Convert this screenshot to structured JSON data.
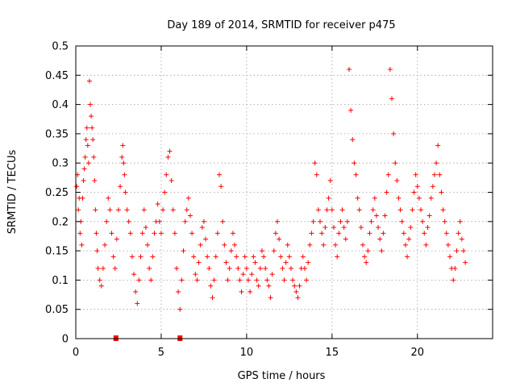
{
  "chart_data": {
    "type": "scatter",
    "title": "Day 189 of 2014, SRMTID for receiver p475",
    "xlabel": "GPS time / hours",
    "ylabel": "SRMTID / TECUs",
    "xlim": [
      0,
      24.4
    ],
    "ylim": [
      0,
      0.5
    ],
    "xticks": [
      0,
      5,
      10,
      15,
      20
    ],
    "xtick_labels": [
      "0",
      "5",
      "10",
      "15",
      "20"
    ],
    "yticks": [
      0,
      0.05,
      0.1,
      0.15,
      0.2,
      0.25,
      0.3,
      0.35,
      0.4,
      0.45,
      0.5
    ],
    "ytick_labels": [
      "0",
      "0.05",
      "0.1",
      "0.15",
      "0.2",
      "0.25",
      "0.3",
      "0.35",
      "0.4",
      "0.45",
      "0.5"
    ],
    "grid": true,
    "marker_color": "#ff0000",
    "zero_markers_x": [
      2.35,
      6.1
    ],
    "series": [
      {
        "name": "SRMTID",
        "x": [
          0.05,
          0.1,
          0.15,
          0.2,
          0.25,
          0.3,
          0.35,
          0.4,
          0.45,
          0.5,
          0.55,
          0.6,
          0.65,
          0.7,
          0.75,
          0.8,
          0.85,
          0.9,
          0.95,
          1.0,
          1.05,
          1.1,
          1.15,
          1.2,
          1.25,
          1.3,
          1.4,
          1.5,
          1.6,
          1.7,
          1.8,
          1.9,
          2.0,
          2.1,
          2.2,
          2.3,
          2.4,
          2.5,
          2.6,
          2.7,
          2.75,
          2.8,
          2.85,
          2.9,
          3.0,
          3.1,
          3.2,
          3.3,
          3.4,
          3.5,
          3.6,
          3.7,
          3.8,
          3.9,
          4.0,
          4.1,
          4.2,
          4.3,
          4.4,
          4.5,
          4.6,
          4.7,
          4.8,
          4.9,
          5.0,
          5.1,
          5.2,
          5.3,
          5.4,
          5.5,
          5.6,
          5.7,
          5.8,
          5.9,
          6.0,
          6.1,
          6.2,
          6.3,
          6.4,
          6.5,
          6.6,
          6.7,
          6.8,
          6.9,
          7.0,
          7.1,
          7.2,
          7.3,
          7.4,
          7.5,
          7.6,
          7.7,
          7.8,
          7.9,
          8.0,
          8.1,
          8.2,
          8.3,
          8.4,
          8.5,
          8.6,
          8.7,
          8.8,
          8.9,
          9.0,
          9.1,
          9.2,
          9.3,
          9.4,
          9.5,
          9.6,
          9.7,
          9.8,
          9.9,
          10.0,
          10.1,
          10.2,
          10.3,
          10.4,
          10.5,
          10.6,
          10.7,
          10.8,
          10.9,
          11.0,
          11.1,
          11.2,
          11.3,
          11.4,
          11.5,
          11.6,
          11.7,
          11.8,
          11.9,
          12.0,
          12.1,
          12.2,
          12.3,
          12.4,
          12.5,
          12.6,
          12.7,
          12.8,
          12.9,
          13.0,
          13.1,
          13.2,
          13.3,
          13.4,
          13.5,
          13.6,
          13.7,
          13.8,
          13.9,
          14.0,
          14.1,
          14.2,
          14.3,
          14.4,
          14.5,
          14.6,
          14.7,
          14.8,
          14.9,
          15.0,
          15.1,
          15.2,
          15.3,
          15.4,
          15.5,
          15.6,
          15.7,
          15.8,
          15.9,
          16.0,
          16.1,
          16.2,
          16.3,
          16.4,
          16.5,
          16.6,
          16.7,
          16.8,
          16.9,
          17.0,
          17.1,
          17.2,
          17.3,
          17.4,
          17.5,
          17.6,
          17.7,
          17.8,
          17.9,
          18.0,
          18.1,
          18.2,
          18.3,
          18.4,
          18.5,
          18.6,
          18.7,
          18.8,
          18.9,
          19.0,
          19.1,
          19.2,
          19.3,
          19.4,
          19.5,
          19.6,
          19.7,
          19.8,
          19.9,
          20.0,
          20.1,
          20.2,
          20.3,
          20.4,
          20.5,
          20.6,
          20.7,
          20.8,
          20.9,
          21.0,
          21.1,
          21.2,
          21.3,
          21.4,
          21.5,
          21.6,
          21.7,
          21.8,
          21.9,
          22.0,
          22.1,
          22.2,
          22.3,
          22.4,
          22.5,
          22.6,
          22.7,
          22.8
        ],
        "y": [
          0.26,
          0.28,
          0.22,
          0.24,
          0.18,
          0.2,
          0.16,
          0.24,
          0.27,
          0.29,
          0.31,
          0.34,
          0.36,
          0.33,
          0.3,
          0.44,
          0.4,
          0.38,
          0.36,
          0.34,
          0.31,
          0.27,
          0.22,
          0.18,
          0.15,
          0.12,
          0.1,
          0.09,
          0.12,
          0.16,
          0.2,
          0.24,
          0.22,
          0.18,
          0.14,
          0.12,
          0.17,
          0.22,
          0.26,
          0.31,
          0.33,
          0.3,
          0.28,
          0.25,
          0.22,
          0.2,
          0.18,
          0.14,
          0.11,
          0.08,
          0.06,
          0.1,
          0.14,
          0.18,
          0.22,
          0.19,
          0.16,
          0.12,
          0.1,
          0.14,
          0.18,
          0.2,
          0.23,
          0.2,
          0.18,
          0.22,
          0.25,
          0.28,
          0.31,
          0.32,
          0.27,
          0.22,
          0.18,
          0.12,
          0.08,
          0.05,
          0.1,
          0.15,
          0.2,
          0.22,
          0.24,
          0.21,
          0.18,
          0.14,
          0.11,
          0.1,
          0.13,
          0.16,
          0.19,
          0.2,
          0.17,
          0.14,
          0.12,
          0.09,
          0.07,
          0.1,
          0.14,
          0.18,
          0.28,
          0.26,
          0.2,
          0.16,
          0.13,
          0.1,
          0.12,
          0.15,
          0.18,
          0.16,
          0.14,
          0.12,
          0.1,
          0.08,
          0.11,
          0.14,
          0.12,
          0.1,
          0.08,
          0.11,
          0.14,
          0.13,
          0.1,
          0.09,
          0.12,
          0.15,
          0.14,
          0.12,
          0.1,
          0.09,
          0.07,
          0.11,
          0.15,
          0.18,
          0.2,
          0.17,
          0.14,
          0.12,
          0.1,
          0.13,
          0.16,
          0.14,
          0.12,
          0.1,
          0.09,
          0.08,
          0.07,
          0.09,
          0.12,
          0.14,
          0.12,
          0.1,
          0.13,
          0.16,
          0.18,
          0.2,
          0.3,
          0.28,
          0.22,
          0.2,
          0.18,
          0.16,
          0.19,
          0.22,
          0.24,
          0.27,
          0.22,
          0.19,
          0.16,
          0.14,
          0.18,
          0.2,
          0.22,
          0.19,
          0.17,
          0.2,
          0.46,
          0.39,
          0.34,
          0.3,
          0.28,
          0.24,
          0.22,
          0.19,
          0.16,
          0.14,
          0.13,
          0.15,
          0.18,
          0.2,
          0.22,
          0.24,
          0.21,
          0.19,
          0.17,
          0.15,
          0.18,
          0.21,
          0.25,
          0.28,
          0.46,
          0.41,
          0.35,
          0.3,
          0.27,
          0.24,
          0.22,
          0.2,
          0.18,
          0.16,
          0.14,
          0.17,
          0.19,
          0.22,
          0.25,
          0.28,
          0.26,
          0.24,
          0.22,
          0.2,
          0.18,
          0.16,
          0.19,
          0.21,
          0.24,
          0.26,
          0.28,
          0.3,
          0.33,
          0.28,
          0.25,
          0.22,
          0.2,
          0.18,
          0.16,
          0.14,
          0.12,
          0.1,
          0.12,
          0.15,
          0.18,
          0.2,
          0.17,
          0.15,
          0.13
        ]
      }
    ]
  }
}
